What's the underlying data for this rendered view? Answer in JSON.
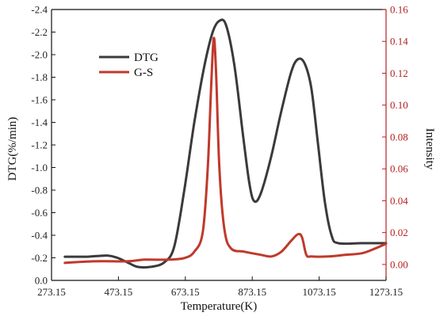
{
  "colors": {
    "dtg": "#3a3a3a",
    "gs": "#c0392b",
    "right_axis": "#b22222",
    "frame": "#111111"
  },
  "chart_data": {
    "type": "line",
    "xlabel": "Temperature(K)",
    "ylabel_left": "DTG(%/min)",
    "ylabel_right": "Intensity",
    "xlim": [
      273.15,
      1273.15
    ],
    "x_ticks": [
      "273.15",
      "473.15",
      "673.15",
      "873.15",
      "1073.15",
      "1273.15"
    ],
    "left_axis": {
      "range": [
        0.0,
        -2.4
      ],
      "reversed": true,
      "tick_labels": [
        "0.0",
        "-0.2",
        "-0.4",
        "-0.6",
        "-0.8",
        "-1.0",
        "-1.2",
        "-1.4",
        "-1.6",
        "-1.8",
        "-2.0",
        "-2.2",
        "-2.4"
      ]
    },
    "right_axis": {
      "range": [
        -0.01,
        0.16
      ],
      "tick_labels": [
        "0.00",
        "0.02",
        "0.04",
        "0.06",
        "0.08",
        "0.10",
        "0.12",
        "0.14",
        "0.16"
      ]
    },
    "legend": {
      "position": "top-left",
      "entries": [
        "DTG",
        "G-S"
      ]
    },
    "series": [
      {
        "name": "DTG",
        "axis": "left",
        "points": [
          [
            313,
            -0.21
          ],
          [
            380,
            -0.21
          ],
          [
            440,
            -0.22
          ],
          [
            470,
            -0.2
          ],
          [
            500,
            -0.16
          ],
          [
            530,
            -0.12
          ],
          [
            570,
            -0.12
          ],
          [
            610,
            -0.16
          ],
          [
            640,
            -0.3
          ],
          [
            670,
            -0.8
          ],
          [
            700,
            -1.4
          ],
          [
            730,
            -1.9
          ],
          [
            755,
            -2.2
          ],
          [
            775,
            -2.3
          ],
          [
            795,
            -2.26
          ],
          [
            820,
            -1.9
          ],
          [
            845,
            -1.3
          ],
          [
            865,
            -0.85
          ],
          [
            880,
            -0.7
          ],
          [
            900,
            -0.78
          ],
          [
            930,
            -1.1
          ],
          [
            960,
            -1.5
          ],
          [
            990,
            -1.85
          ],
          [
            1010,
            -1.96
          ],
          [
            1030,
            -1.92
          ],
          [
            1050,
            -1.7
          ],
          [
            1070,
            -1.2
          ],
          [
            1090,
            -0.7
          ],
          [
            1110,
            -0.4
          ],
          [
            1130,
            -0.33
          ],
          [
            1200,
            -0.33
          ],
          [
            1273,
            -0.33
          ]
        ]
      },
      {
        "name": "G-S",
        "axis": "right",
        "points": [
          [
            313,
            0.001
          ],
          [
            400,
            0.002
          ],
          [
            500,
            0.002
          ],
          [
            550,
            0.003
          ],
          [
            620,
            0.003
          ],
          [
            670,
            0.004
          ],
          [
            700,
            0.008
          ],
          [
            725,
            0.02
          ],
          [
            740,
            0.06
          ],
          [
            750,
            0.11
          ],
          [
            758,
            0.142
          ],
          [
            765,
            0.12
          ],
          [
            775,
            0.06
          ],
          [
            790,
            0.022
          ],
          [
            810,
            0.01
          ],
          [
            850,
            0.008
          ],
          [
            900,
            0.006
          ],
          [
            930,
            0.005
          ],
          [
            960,
            0.008
          ],
          [
            990,
            0.015
          ],
          [
            1010,
            0.019
          ],
          [
            1022,
            0.017
          ],
          [
            1035,
            0.006
          ],
          [
            1050,
            0.005
          ],
          [
            1100,
            0.005
          ],
          [
            1150,
            0.006
          ],
          [
            1200,
            0.007
          ],
          [
            1240,
            0.01
          ],
          [
            1273,
            0.013
          ]
        ]
      }
    ]
  }
}
